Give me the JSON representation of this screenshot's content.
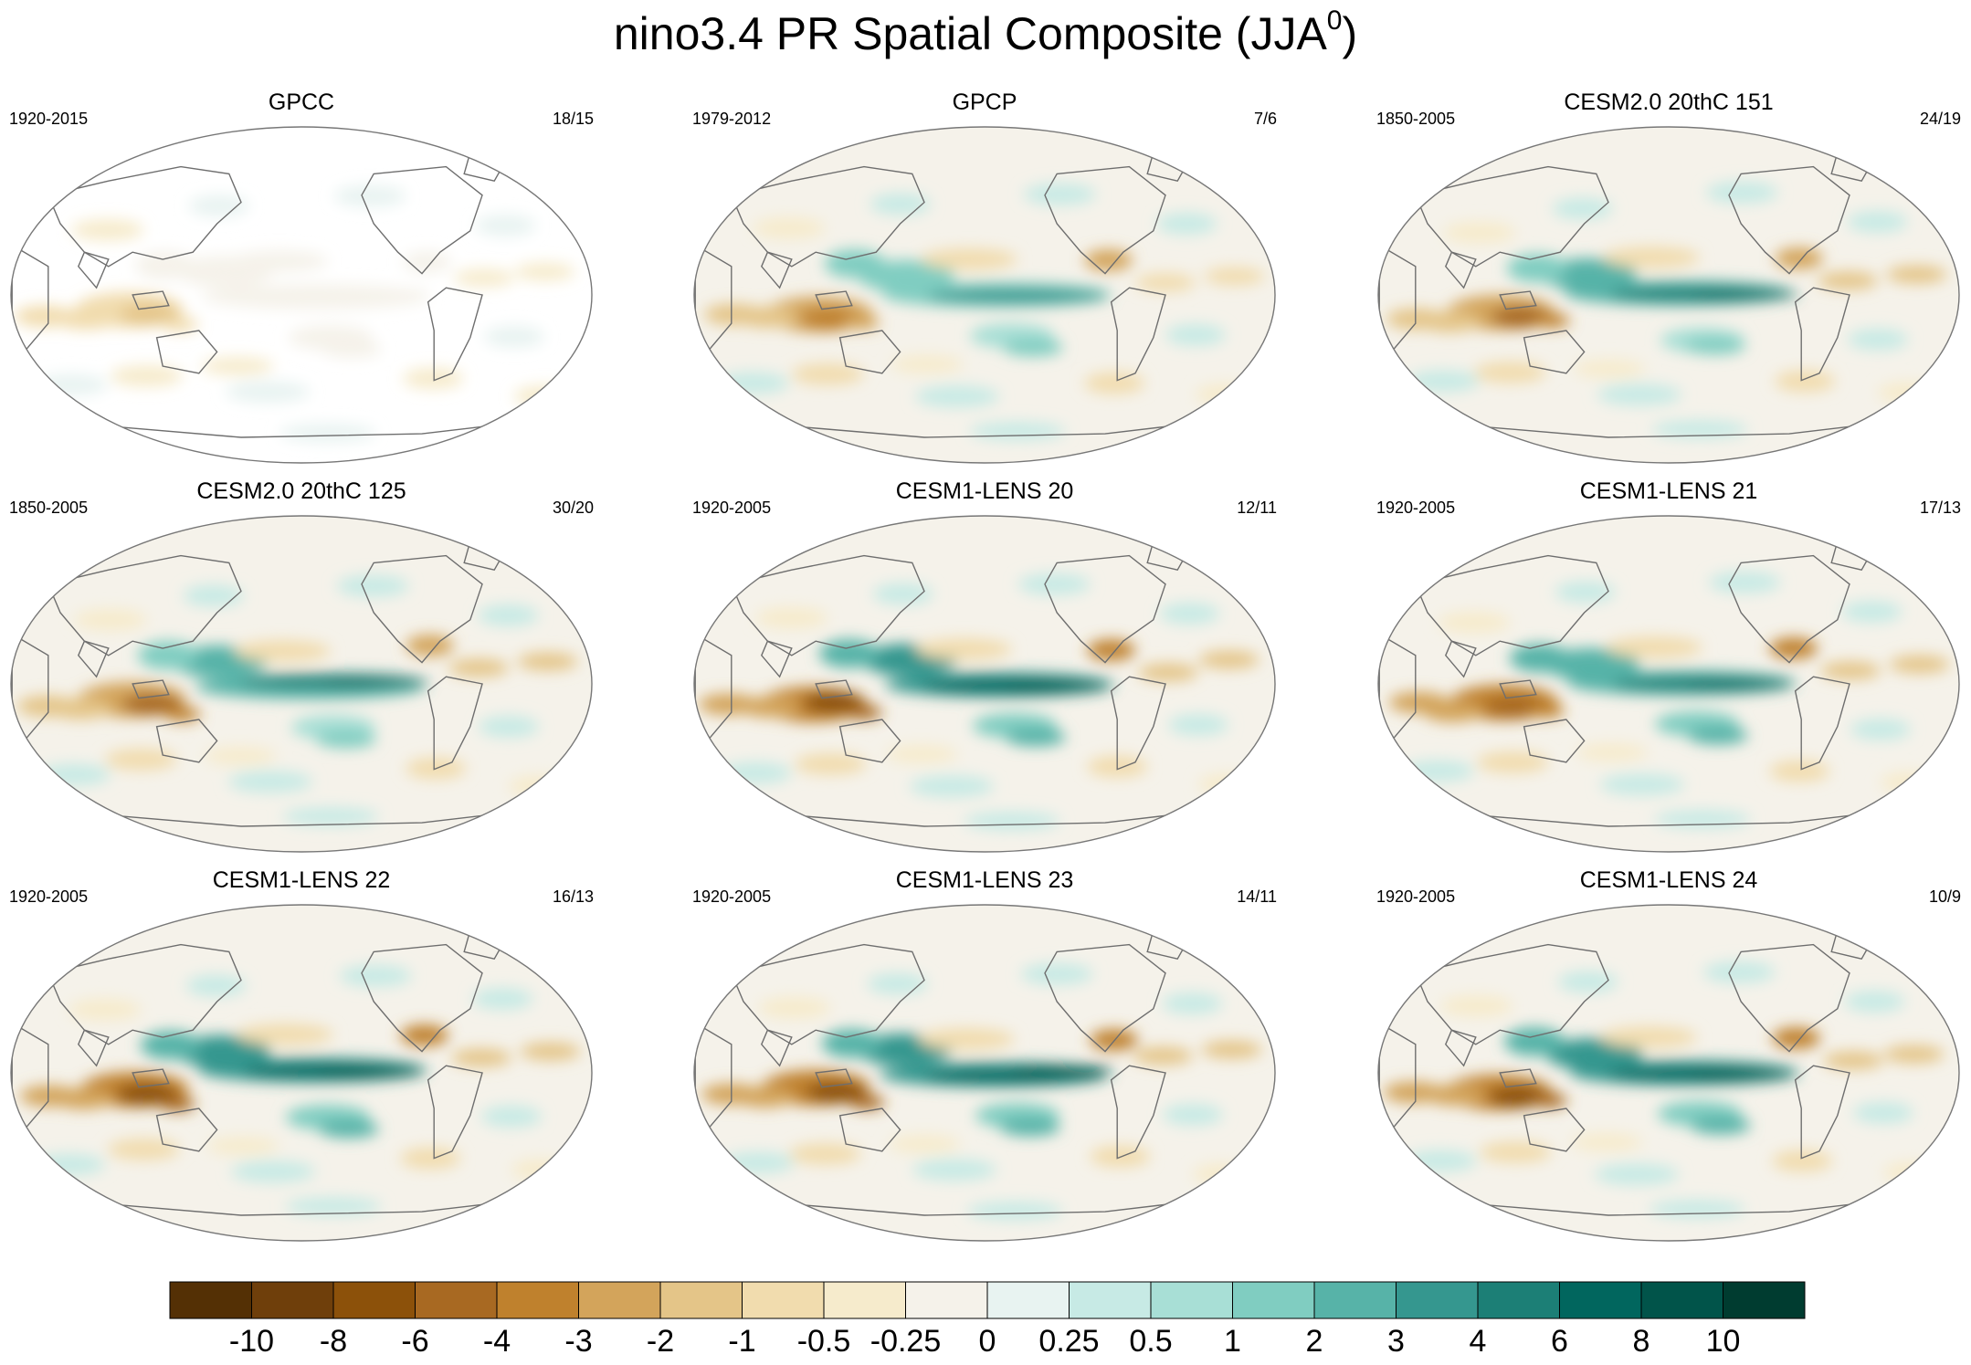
{
  "title": {
    "main": "nino3.4 PR Spatial Composite (JJA",
    "superscript": "0",
    "close": ")"
  },
  "colors": {
    "scale": [
      "#543005",
      "#6f3f0b",
      "#8c510a",
      "#a86922",
      "#bf812d",
      "#d3a45b",
      "#e4c588",
      "#f1dcae",
      "#f6ebcc",
      "#f5f2ea",
      "#e8f3f1",
      "#c7eae5",
      "#a8dfd6",
      "#80cdc1",
      "#57b3a8",
      "#35978f",
      "#1c7f76",
      "#01665e",
      "#01544a",
      "#003c30"
    ],
    "land_outline": "#6e6e6e"
  },
  "colorbar": {
    "labels": [
      "-10",
      "-8",
      "-6",
      "-4",
      "-3",
      "-2",
      "-1",
      "-0.5",
      "-0.25",
      "0",
      "0.25",
      "0.5",
      "1",
      "2",
      "3",
      "4",
      "6",
      "8",
      "10"
    ]
  },
  "panels": [
    {
      "title": "GPCC",
      "years": "1920-2015",
      "count": "18/15",
      "ocean_masked": true,
      "intensity": 0.35
    },
    {
      "title": "GPCP",
      "years": "1979-2012",
      "count": "7/6",
      "ocean_masked": false,
      "intensity": 0.7
    },
    {
      "title": "CESM2.0 20thC 151",
      "years": "1850-2005",
      "count": "24/19",
      "ocean_masked": false,
      "intensity": 0.85
    },
    {
      "title": "CESM2.0 20thC 125",
      "years": "1850-2005",
      "count": "30/20",
      "ocean_masked": false,
      "intensity": 0.85
    },
    {
      "title": "CESM1-LENS 20",
      "years": "1920-2005",
      "count": "12/11",
      "ocean_masked": false,
      "intensity": 0.95
    },
    {
      "title": "CESM1-LENS 21",
      "years": "1920-2005",
      "count": "17/13",
      "ocean_masked": false,
      "intensity": 0.9
    },
    {
      "title": "CESM1-LENS 22",
      "years": "1920-2005",
      "count": "16/13",
      "ocean_masked": false,
      "intensity": 1.0
    },
    {
      "title": "CESM1-LENS 23",
      "years": "1920-2005",
      "count": "14/11",
      "ocean_masked": false,
      "intensity": 1.0
    },
    {
      "title": "CESM1-LENS 24",
      "years": "1920-2005",
      "count": "10/9",
      "ocean_masked": false,
      "intensity": 1.0
    }
  ]
}
